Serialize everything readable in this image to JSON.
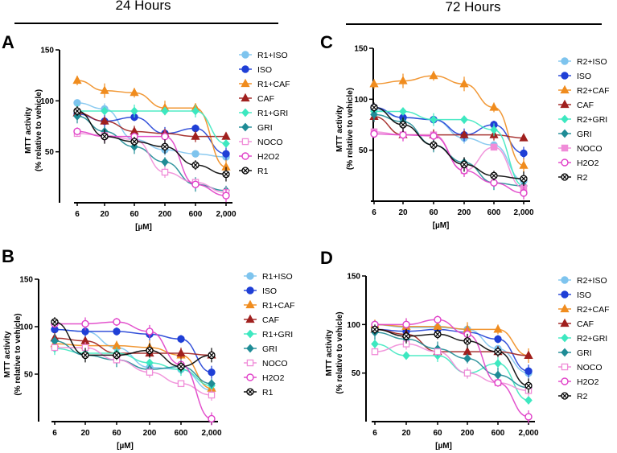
{
  "headers": {
    "left": "24 Hours",
    "right": "72 Hours"
  },
  "chart_data": [
    {
      "panel": "A",
      "type": "scatter",
      "xlabel": "[µM]",
      "ylabel_line1": "MTT activity",
      "ylabel_line2": "(% relative to vehicle)",
      "x_ticks": [
        "6",
        "20",
        "60",
        "200",
        "600",
        "2,000"
      ],
      "y_ticks": [
        "50",
        "100",
        "150"
      ],
      "ylim": [
        0,
        150
      ],
      "series": [
        {
          "name": "R1+ISO",
          "color": "#7ec4ee",
          "marker": "circle",
          "fill": true,
          "values": [
            98,
            92,
            62,
            52,
            48,
            45
          ]
        },
        {
          "name": "ISO",
          "color": "#1f3fd6",
          "marker": "circle",
          "fill": true,
          "values": [
            87,
            80,
            84,
            68,
            73,
            48
          ]
        },
        {
          "name": "R1+CAF",
          "color": "#f08c1e",
          "marker": "triangle",
          "fill": true,
          "values": [
            120,
            110,
            108,
            93,
            93,
            35
          ]
        },
        {
          "name": "CAF",
          "color": "#a0201e",
          "marker": "triangle",
          "fill": true,
          "values": [
            88,
            80,
            70,
            68,
            65,
            65
          ]
        },
        {
          "name": "R1+GRI",
          "color": "#3de8c0",
          "marker": "diamond",
          "fill": true,
          "values": [
            90,
            90,
            90,
            90,
            90,
            58
          ]
        },
        {
          "name": "GRI",
          "color": "#1f8c96",
          "marker": "diamond",
          "fill": true,
          "values": [
            85,
            70,
            55,
            40,
            18,
            12
          ]
        },
        {
          "name": "NOCO",
          "color": "#f08cd8",
          "marker": "square",
          "fill": false,
          "values": [
            68,
            66,
            62,
            30,
            20,
            10
          ]
        },
        {
          "name": "H2O2",
          "color": "#e040c8",
          "marker": "circle",
          "fill": false,
          "values": [
            70,
            65,
            65,
            65,
            18,
            7
          ]
        },
        {
          "name": "R1",
          "color": "#000000",
          "marker": "xcircle",
          "fill": false,
          "values": [
            90,
            65,
            60,
            55,
            37,
            28
          ]
        }
      ]
    },
    {
      "panel": "C",
      "type": "scatter",
      "xlabel": "[µM]",
      "ylabel_line1": "MTT activity",
      "ylabel_line2": "(% relative to vehicle)",
      "x_ticks": [
        "6",
        "20",
        "60",
        "200",
        "600",
        "2,000"
      ],
      "y_ticks": [
        "50",
        "100",
        "150"
      ],
      "ylim": [
        0,
        150
      ],
      "series": [
        {
          "name": "R2+ISO",
          "color": "#7ec4ee",
          "marker": "circle",
          "fill": true,
          "values": [
            90,
            82,
            80,
            62,
            55,
            20
          ]
        },
        {
          "name": "ISO",
          "color": "#1f3fd6",
          "marker": "circle",
          "fill": true,
          "values": [
            92,
            82,
            80,
            65,
            75,
            47
          ]
        },
        {
          "name": "R2+CAF",
          "color": "#f08c1e",
          "marker": "triangle",
          "fill": true,
          "values": [
            115,
            118,
            123,
            115,
            92,
            35
          ]
        },
        {
          "name": "CAF",
          "color": "#a0201e",
          "marker": "triangle",
          "fill": true,
          "values": [
            83,
            65,
            65,
            65,
            65,
            62
          ]
        },
        {
          "name": "R2+GRI",
          "color": "#3de8c0",
          "marker": "diamond",
          "fill": true,
          "values": [
            88,
            88,
            80,
            80,
            70,
            15
          ]
        },
        {
          "name": "GRI",
          "color": "#1f8c96",
          "marker": "diamond",
          "fill": true,
          "values": [
            85,
            78,
            55,
            38,
            18,
            15
          ]
        },
        {
          "name": "NOCO",
          "color": "#f08cd8",
          "marker": "square",
          "fill": true,
          "values": [
            68,
            65,
            65,
            30,
            53,
            13
          ]
        },
        {
          "name": "H2O2",
          "color": "#e040c8",
          "marker": "circle",
          "fill": false,
          "values": [
            66,
            65,
            64,
            30,
            18,
            8
          ]
        },
        {
          "name": "R2",
          "color": "#000000",
          "marker": "xcircle",
          "fill": false,
          "values": [
            92,
            75,
            55,
            36,
            25,
            22
          ]
        }
      ]
    },
    {
      "panel": "B",
      "type": "scatter",
      "xlabel": "[µM]",
      "ylabel_line1": "MTT activity",
      "ylabel_line2": "(% relative to vehicle)",
      "x_ticks": [
        "6",
        "20",
        "60",
        "200",
        "600",
        "2,000"
      ],
      "y_ticks": [
        "50",
        "100",
        "150"
      ],
      "ylim": [
        0,
        150
      ],
      "series": [
        {
          "name": "R1+ISO",
          "color": "#7ec4ee",
          "marker": "circle",
          "fill": true,
          "values": [
            97,
            95,
            78,
            57,
            55,
            33
          ]
        },
        {
          "name": "ISO",
          "color": "#1f3fd6",
          "marker": "circle",
          "fill": true,
          "values": [
            97,
            95,
            95,
            92,
            87,
            52
          ]
        },
        {
          "name": "R1+CAF",
          "color": "#f08c1e",
          "marker": "triangle",
          "fill": true,
          "values": [
            82,
            80,
            80,
            78,
            70,
            35
          ]
        },
        {
          "name": "CAF",
          "color": "#a0201e",
          "marker": "triangle",
          "fill": true,
          "values": [
            88,
            85,
            72,
            72,
            72,
            70
          ]
        },
        {
          "name": "R1+GRI",
          "color": "#3de8c0",
          "marker": "diamond",
          "fill": true,
          "values": [
            77,
            72,
            72,
            62,
            55,
            38
          ]
        },
        {
          "name": "GRI",
          "color": "#1f8c96",
          "marker": "diamond",
          "fill": true,
          "values": [
            85,
            70,
            65,
            55,
            58,
            40
          ]
        },
        {
          "name": "NOCO",
          "color": "#f08cd8",
          "marker": "square",
          "fill": false,
          "values": [
            78,
            78,
            65,
            52,
            40,
            28
          ]
        },
        {
          "name": "H2O2",
          "color": "#e040c8",
          "marker": "circle",
          "fill": false,
          "values": [
            103,
            103,
            105,
            95,
            60,
            3
          ]
        },
        {
          "name": "R1",
          "color": "#000000",
          "marker": "xcircle",
          "fill": false,
          "values": [
            105,
            70,
            70,
            75,
            58,
            70
          ]
        }
      ]
    },
    {
      "panel": "D",
      "type": "scatter",
      "xlabel": "[µM]",
      "ylabel_line1": "MTT activity",
      "ylabel_line2": "(% relative to vehicle)",
      "x_ticks": [
        "6",
        "20",
        "60",
        "200",
        "600",
        "2,000"
      ],
      "y_ticks": [
        "50",
        "100",
        "150"
      ],
      "ylim": [
        0,
        150
      ],
      "series": [
        {
          "name": "R2+ISO",
          "color": "#7ec4ee",
          "marker": "circle",
          "fill": true,
          "values": [
            100,
            97,
            97,
            95,
            75,
            50
          ]
        },
        {
          "name": "ISO",
          "color": "#1f3fd6",
          "marker": "circle",
          "fill": true,
          "values": [
            95,
            93,
            95,
            92,
            85,
            52
          ]
        },
        {
          "name": "R2+CAF",
          "color": "#f08c1e",
          "marker": "triangle",
          "fill": true,
          "values": [
            100,
            98,
            98,
            95,
            95,
            68
          ]
        },
        {
          "name": "CAF",
          "color": "#a0201e",
          "marker": "triangle",
          "fill": true,
          "values": [
            95,
            90,
            72,
            72,
            72,
            68
          ]
        },
        {
          "name": "R2+GRI",
          "color": "#3de8c0",
          "marker": "diamond",
          "fill": true,
          "values": [
            80,
            68,
            68,
            50,
            60,
            22
          ]
        },
        {
          "name": "GRI",
          "color": "#1f8c96",
          "marker": "diamond",
          "fill": true,
          "values": [
            92,
            85,
            75,
            65,
            48,
            35
          ]
        },
        {
          "name": "NOCO",
          "color": "#f08cd8",
          "marker": "square",
          "fill": false,
          "values": [
            72,
            80,
            72,
            50,
            40,
            32
          ]
        },
        {
          "name": "H2O2",
          "color": "#e040c8",
          "marker": "circle",
          "fill": false,
          "values": [
            100,
            100,
            105,
            90,
            40,
            5
          ]
        },
        {
          "name": "R2",
          "color": "#000000",
          "marker": "xcircle",
          "fill": false,
          "values": [
            95,
            88,
            90,
            83,
            72,
            37
          ]
        }
      ]
    }
  ]
}
